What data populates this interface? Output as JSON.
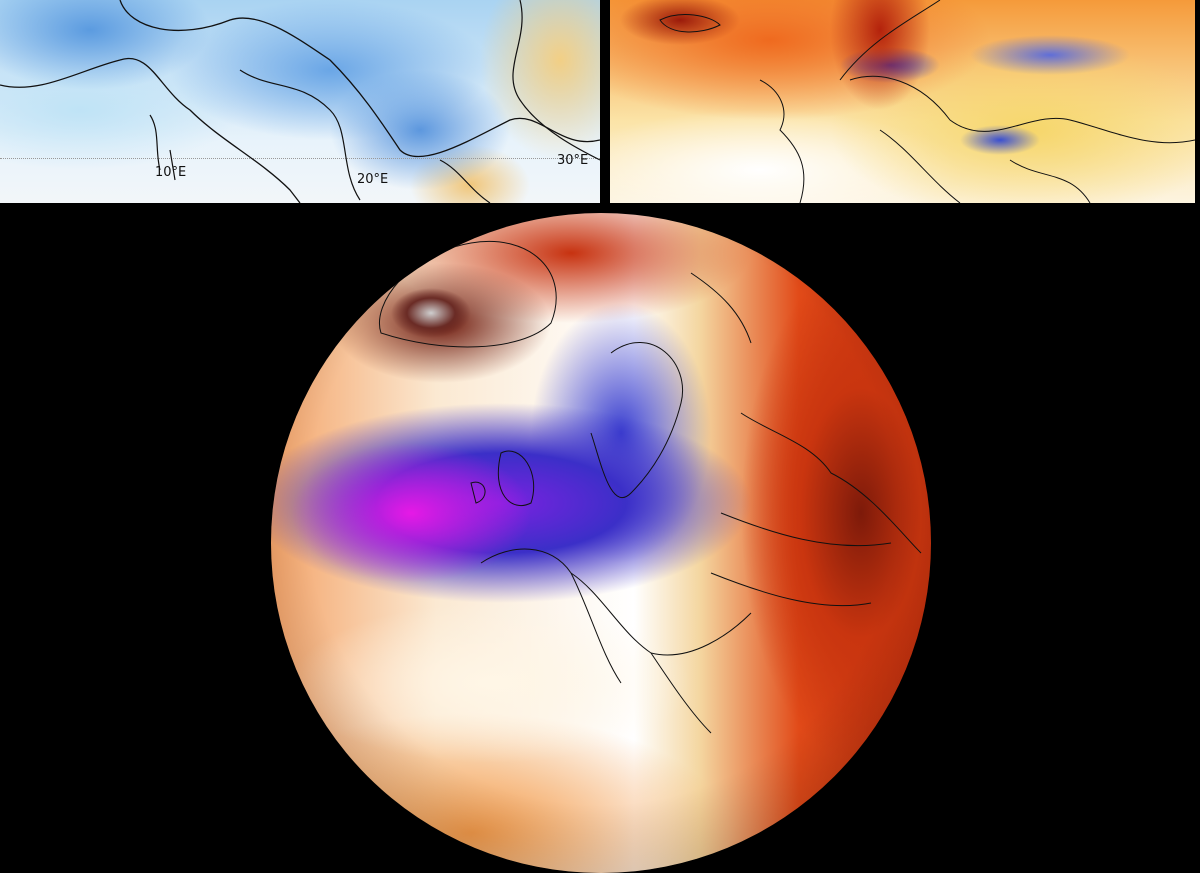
{
  "top_left_map": {
    "description_labels": [
      "10°E",
      "20°E",
      "30°E"
    ],
    "colors": {
      "cold": "#5b9be0",
      "neutral": "#f2f6f9",
      "warm": "#f2cf85"
    }
  },
  "top_right_map": {
    "colors": {
      "hot": "#b4220c",
      "warm": "#f6d66a",
      "cold": "#2a3bc8"
    }
  },
  "globe_map": {
    "colors": {
      "strong_negative": "#e619e6",
      "negative": "#3b2fc8",
      "neutral": "#ffffff",
      "positive": "#c9350f",
      "strong_positive": "#6b1509"
    }
  }
}
